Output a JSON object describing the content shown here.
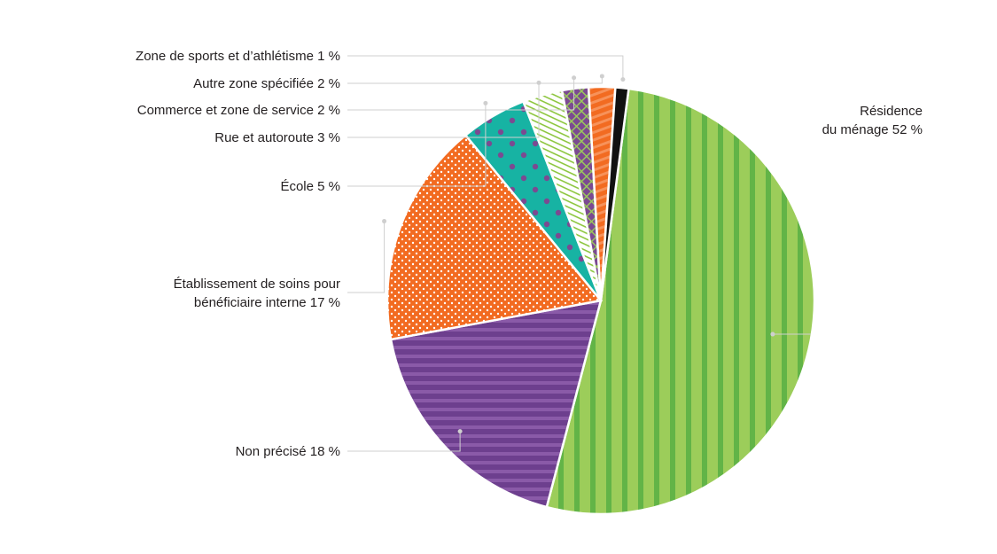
{
  "chart_data": {
    "type": "pie",
    "title": "",
    "unit": "%",
    "slices": [
      {
        "label": "Résidence du ménage",
        "label_lines": [
          "Résidence",
          "du ménage"
        ],
        "value": 52,
        "value_label": "52 %",
        "color": "#8dc63f",
        "pattern": "green-vertical-stripes"
      },
      {
        "label": "Non précisé",
        "label_lines": [
          "Non précisé"
        ],
        "value": 18,
        "value_label": "18 %",
        "color": "#6d3f8e",
        "pattern": "purple-horizontal-stripes"
      },
      {
        "label": "Établissement de soins pour bénéficiaire interne",
        "label_lines": [
          "Établissement de soins pour",
          "bénéficiaire interne"
        ],
        "value": 17,
        "value_label": "17 %",
        "color": "#f26b21",
        "pattern": "orange-white-dots"
      },
      {
        "label": "École",
        "label_lines": [
          "École"
        ],
        "value": 5,
        "value_label": "5 %",
        "color": "#17b3a3",
        "pattern": "teal-purple-dots"
      },
      {
        "label": "Rue et autoroute",
        "label_lines": [
          "Rue et autoroute"
        ],
        "value": 3,
        "value_label": "3 %",
        "color": "#ffffff",
        "pattern": "green-diagonal-lines"
      },
      {
        "label": "Commerce et zone de service",
        "label_lines": [
          "Commerce et zone de service"
        ],
        "value": 2,
        "value_label": "2 %",
        "color": "#7b4a91",
        "pattern": "purple-green-crosshatch"
      },
      {
        "label": "Autre zone spécifiée",
        "label_lines": [
          "Autre zone spécifiée"
        ],
        "value": 2,
        "value_label": "2 %",
        "color": "#f26b21",
        "pattern": "orange-stripes"
      },
      {
        "label": "Zone de sports et d’athlétisme",
        "label_lines": [
          "Zone de sports et d’athlétisme"
        ],
        "value": 1,
        "value_label": "1 %",
        "color": "#111111",
        "pattern": "solid-black"
      }
    ]
  }
}
